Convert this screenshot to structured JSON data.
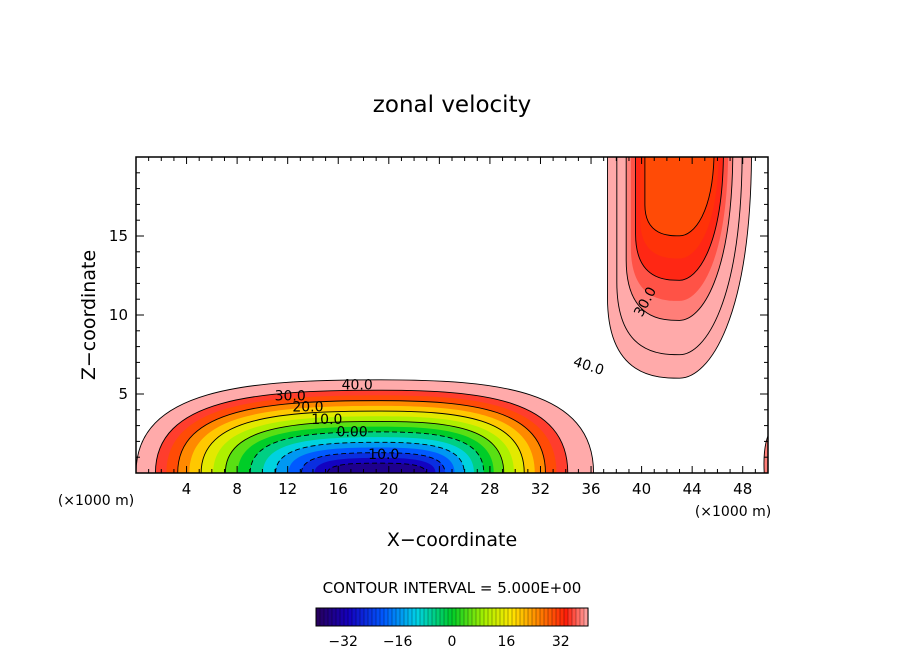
{
  "chart_data": {
    "type": "contour",
    "title": "zonal velocity",
    "xlabel": "X−coordinate",
    "ylabel": "Z−coordinate",
    "x_unit_left": "(×1000 m)",
    "x_unit_right": "(×1000 m)",
    "xlim": [
      0,
      50
    ],
    "ylim": [
      0,
      20
    ],
    "x_ticks": [
      4,
      8,
      12,
      16,
      20,
      24,
      28,
      32,
      36,
      40,
      44,
      48
    ],
    "y_ticks": [
      5,
      10,
      15
    ],
    "contour_interval_text": "CONTOUR INTERVAL = 5.000E+00",
    "colorbar": {
      "vmin": -40,
      "vmax": 40,
      "ticks": [
        "−32",
        "−16",
        "0",
        "16",
        "32"
      ],
      "tick_values": [
        -32,
        -16,
        0,
        16,
        32
      ]
    },
    "contour_labels": [
      {
        "text": "40.0",
        "x": 17.5,
        "y": 5.3
      },
      {
        "text": "30.0",
        "x": 12.2,
        "y": 4.6
      },
      {
        "text": "20.0",
        "x": 13.6,
        "y": 3.9
      },
      {
        "text": "10.0",
        "x": 15.1,
        "y": 3.1
      },
      {
        "text": "0.00",
        "x": 17.1,
        "y": 2.3
      },
      {
        "text": "10.0",
        "x": 19.6,
        "y": 0.9
      },
      {
        "text": "30.0",
        "x": 40.6,
        "y": 10.7
      },
      {
        "text": "40.0",
        "x": 35.7,
        "y": 6.5
      }
    ]
  }
}
